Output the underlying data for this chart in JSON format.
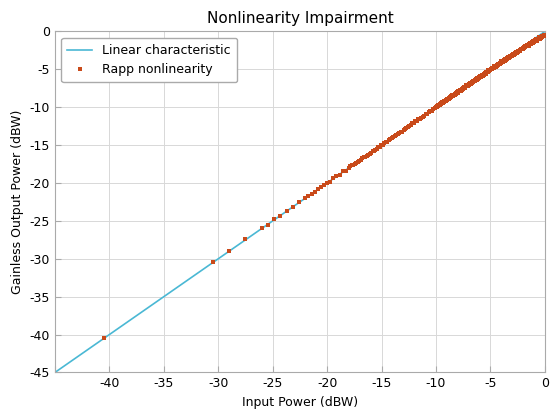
{
  "title": "Nonlinearity Impairment",
  "xlabel": "Input Power (dBW)",
  "ylabel": "Gainless Output Power (dBW)",
  "xlim": [
    -45,
    0
  ],
  "ylim": [
    -45,
    0
  ],
  "xticks": [
    -45,
    -40,
    -35,
    -30,
    -25,
    -20,
    -15,
    -10,
    -5,
    0
  ],
  "yticks": [
    -45,
    -40,
    -35,
    -30,
    -25,
    -20,
    -15,
    -10,
    -5,
    0
  ],
  "xticklabels": [
    "",
    "-40",
    "-35",
    "-30",
    "-25",
    "-20",
    "-15",
    "-10",
    "-5",
    "0"
  ],
  "yticklabels": [
    "-45",
    "-40",
    "-35",
    "-30",
    "-25",
    "-20",
    "-15",
    "-10",
    "-5",
    "0"
  ],
  "linear_color": "#4ab8d4",
  "rapp_color": "#c94a1a",
  "rapp_marker": "s",
  "rapp_markersize": 2.5,
  "legend_labels": [
    "Linear characteristic",
    "Rapp nonlinearity"
  ],
  "grid_color": "#d8d8d8",
  "background_color": "#ffffff",
  "title_fontsize": 11,
  "label_fontsize": 9,
  "tick_fontsize": 9,
  "legend_fontsize": 9,
  "rapp_sat_dBW": 3.0,
  "rapp_p": 2
}
